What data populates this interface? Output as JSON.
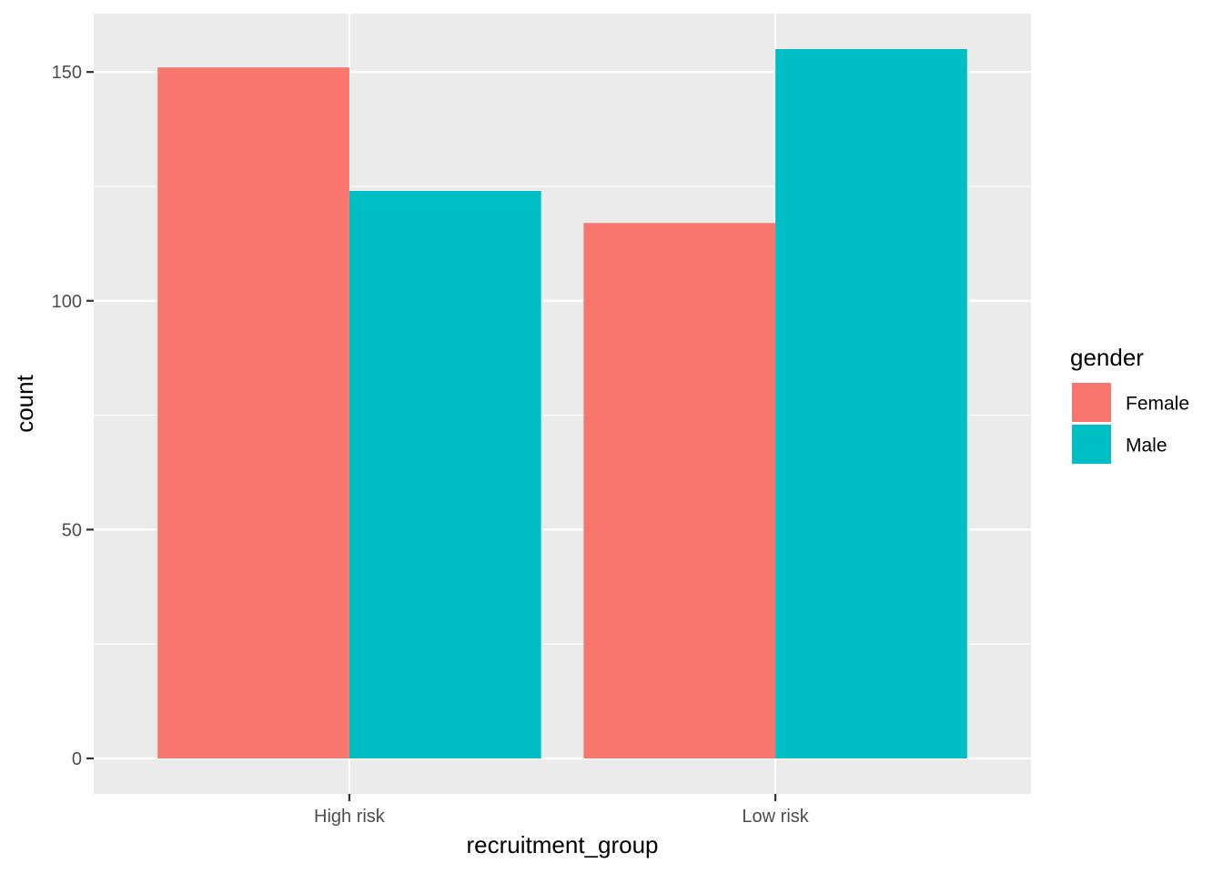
{
  "chart_data": {
    "type": "bar",
    "categories": [
      "High risk",
      "Low risk"
    ],
    "series": [
      {
        "name": "Female",
        "color": "#F8766D",
        "values": [
          151,
          117
        ]
      },
      {
        "name": "Male",
        "color": "#00BFC4",
        "values": [
          124,
          155
        ]
      }
    ],
    "xlabel": "recruitment_group",
    "ylabel": "count",
    "ylim": [
      -7.75,
      162.75
    ],
    "yticks": [
      0,
      50,
      100,
      150
    ],
    "legend": {
      "title": "gender",
      "position": "right"
    },
    "grid": true,
    "panel_background": "#EBEBEB",
    "grid_color": "#FFFFFF"
  }
}
